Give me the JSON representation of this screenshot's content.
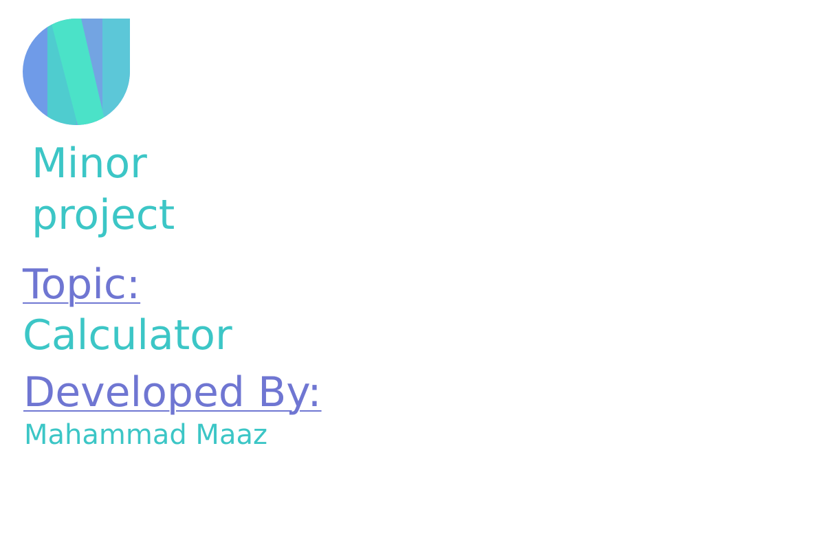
{
  "logo": {
    "icon": "n-letter-logo-icon",
    "colors": [
      "#6f9be8",
      "#4fd0d0",
      "#4be2c8",
      "#5dbfe0"
    ]
  },
  "title": {
    "line1": "Minor",
    "line2": "project"
  },
  "topic": {
    "label": "Topic:",
    "value": "Calculator"
  },
  "developer": {
    "label": "Developed By:",
    "name": "Mahammad Maaz"
  },
  "colors": {
    "accent_teal": "#3cc6c6",
    "accent_purple": "#6f76d2"
  }
}
